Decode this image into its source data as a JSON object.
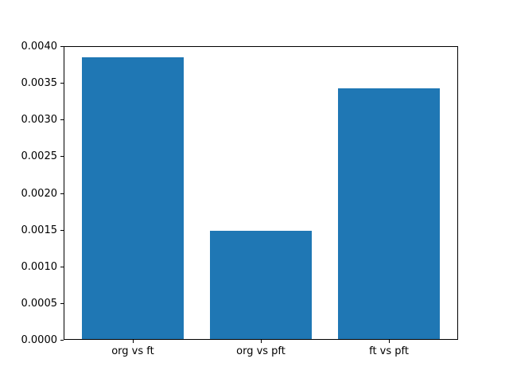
{
  "chart_data": {
    "type": "bar",
    "title": "",
    "xlabel": "",
    "ylabel": "",
    "categories": [
      "org vs ft",
      "org vs pft",
      "ft vs pft"
    ],
    "values": [
      0.00385,
      0.00149,
      0.00343
    ],
    "bar_color": "#1f77b4",
    "bar_width": 0.8,
    "ylim": [
      0.0,
      0.004
    ],
    "xlim": [
      -0.54,
      2.54
    ],
    "ytick_labels": [
      "0.0000",
      "0.0005",
      "0.0010",
      "0.0015",
      "0.0020",
      "0.0025",
      "0.0030",
      "0.0035",
      "0.0040"
    ],
    "grid": false,
    "legend": false
  }
}
